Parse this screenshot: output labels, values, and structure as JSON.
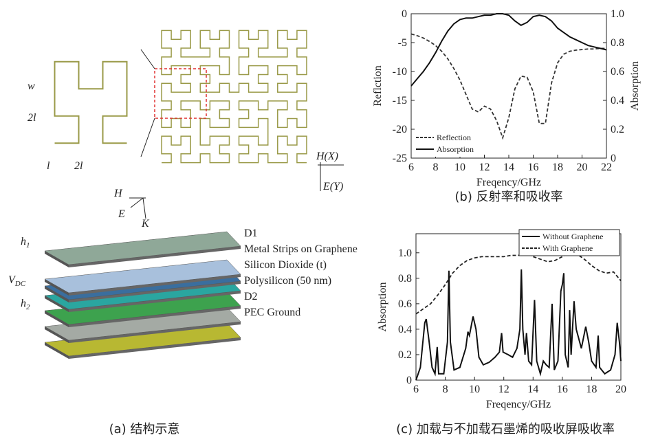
{
  "figure_a": {
    "caption": "(a) 结构示意",
    "w": "w",
    "two_l_v": "2l",
    "l": "l",
    "two_l_h": "2l",
    "hx": "H(X)",
    "ey": "E(Y)",
    "h_vec": "H",
    "e_vec": "E",
    "k_vec": "K",
    "layers": [
      "D1",
      "Metal Strips on Graphene",
      "Silicon Dioxide (t)",
      "Polysilicon (50 nm)",
      "D2",
      "PEC Ground"
    ],
    "h1": {
      "base": "h",
      "sub": "1"
    },
    "vdc": {
      "base": "V",
      "sub": "DC"
    },
    "h2": {
      "base": "h",
      "sub": "2"
    }
  },
  "chart_data": [
    {
      "type": "line",
      "caption": "(b) 反射率和吸收率",
      "xlabel": "Freqency/GHz",
      "ylabel": "Reflction",
      "y2label": "Absorption",
      "legend": "lower left",
      "x": [
        6,
        6.5,
        7,
        7.5,
        8,
        8.5,
        9,
        9.5,
        10,
        10.5,
        11,
        11.5,
        12,
        12.5,
        13,
        13.5,
        14,
        14.5,
        15,
        15.5,
        16,
        16.5,
        17,
        17.5,
        18,
        18.5,
        19,
        19.5,
        20,
        20.5,
        21,
        21.5,
        22
      ],
      "xlim": [
        6,
        22
      ],
      "xticks": [
        6,
        8,
        10,
        12,
        14,
        16,
        18,
        20,
        22
      ],
      "ylim": [
        -25,
        0
      ],
      "yticks": [
        0,
        -5,
        -10,
        -15,
        -20,
        -25
      ],
      "y2lim": [
        0,
        1
      ],
      "y2ticks": [
        0,
        0.2,
        0.4,
        0.6,
        {
          "value": 0.8,
          "label": "0.8"
        },
        {
          "value": 1,
          "label": "1.0"
        }
      ],
      "series": [
        {
          "name": "Reflection",
          "color": "#333333",
          "dashed": true,
          "values": [
            -3.5,
            -3.8,
            -4.2,
            -4.8,
            -5.5,
            -6.5,
            -7.8,
            -9.5,
            -11.5,
            -14,
            -16.5,
            -17,
            -16,
            -16.5,
            -18.5,
            -21.5,
            -18,
            -13,
            -10.8,
            -11,
            -13.5,
            -19,
            -19,
            -12,
            -8.5,
            -7,
            -6.5,
            -6.3,
            -6.2,
            -6.1,
            -6.1,
            -6,
            -6
          ]
        },
        {
          "name": "Absorption",
          "color": "#111111",
          "dashed": false,
          "axis": "y2",
          "values": [
            0.5,
            0.55,
            0.6,
            0.66,
            0.73,
            0.81,
            0.88,
            0.93,
            0.96,
            0.97,
            0.97,
            0.98,
            0.99,
            0.99,
            1.0,
            1.0,
            0.99,
            0.95,
            0.92,
            0.94,
            0.98,
            0.99,
            0.98,
            0.95,
            0.9,
            0.87,
            0.84,
            0.82,
            0.8,
            0.78,
            0.77,
            0.76,
            0.75
          ]
        }
      ]
    },
    {
      "type": "line",
      "caption": "(c) 加载与不加载石墨烯的吸收屏吸收率",
      "xlabel": "Freqency/GHz",
      "ylabel": "Absorption",
      "legend": "upper right",
      "xlim": [
        6,
        20
      ],
      "xticks": [
        6,
        8,
        10,
        12,
        14,
        16,
        18,
        20
      ],
      "ylim": [
        0,
        1.15
      ],
      "yticks": [
        0,
        0.2,
        0.4,
        0.6,
        0.8,
        {
          "value": 1,
          "label": "1.0"
        }
      ],
      "series": [
        {
          "name": "Without Graphene",
          "color": "#111111",
          "dashed": false,
          "x": [
            6,
            6.3,
            6.6,
            6.7,
            6.9,
            7.1,
            7.3,
            7.45,
            7.55,
            7.9,
            8.15,
            8.25,
            8.35,
            8.6,
            9.0,
            9.4,
            9.55,
            9.65,
            9.9,
            10.1,
            10.3,
            10.6,
            11.0,
            11.4,
            11.7,
            11.85,
            11.95,
            12.3,
            12.6,
            12.9,
            13.1,
            13.2,
            13.3,
            13.45,
            13.55,
            13.7,
            13.9,
            14.1,
            14.25,
            14.5,
            14.7,
            14.9,
            15.1,
            15.3,
            15.45,
            15.7,
            15.9,
            16.0,
            16.1,
            16.2,
            16.4,
            16.5,
            16.6,
            16.8,
            16.95,
            17.3,
            17.6,
            17.8,
            18.0,
            18.3,
            18.45,
            18.55,
            18.9,
            19.3,
            19.6,
            19.75,
            19.9,
            20.0
          ],
          "values": [
            0.0,
            0.1,
            0.45,
            0.48,
            0.3,
            0.1,
            0.05,
            0.26,
            0.05,
            0.05,
            0.3,
            0.86,
            0.3,
            0.08,
            0.1,
            0.25,
            0.38,
            0.35,
            0.5,
            0.4,
            0.18,
            0.12,
            0.14,
            0.18,
            0.22,
            0.37,
            0.22,
            0.2,
            0.18,
            0.25,
            0.4,
            0.87,
            0.4,
            0.2,
            0.37,
            0.15,
            0.12,
            0.63,
            0.15,
            0.05,
            0.15,
            0.12,
            0.1,
            0.6,
            0.08,
            0.15,
            0.7,
            0.75,
            0.84,
            0.2,
            0.1,
            0.55,
            0.2,
            0.62,
            0.4,
            0.25,
            0.42,
            0.3,
            0.15,
            0.1,
            0.35,
            0.1,
            0.05,
            0.08,
            0.2,
            0.45,
            0.3,
            0.15
          ]
        },
        {
          "name": "With Graphene",
          "color": "#222222",
          "dashed": true,
          "x": [
            6,
            6.5,
            7,
            7.5,
            8,
            8.5,
            9,
            9.5,
            10,
            10.5,
            11,
            11.5,
            12,
            12.5,
            13,
            13.5,
            14,
            14.5,
            15,
            15.5,
            16,
            16.5,
            17,
            17.5,
            18,
            18.5,
            19,
            19.5,
            20
          ],
          "values": [
            0.52,
            0.56,
            0.6,
            0.67,
            0.75,
            0.84,
            0.9,
            0.94,
            0.96,
            0.97,
            0.97,
            0.97,
            0.97,
            0.98,
            0.98,
            1.0,
            0.97,
            0.95,
            0.93,
            0.94,
            0.97,
            1.0,
            0.99,
            0.95,
            0.9,
            0.86,
            0.84,
            0.85,
            0.78
          ]
        }
      ]
    }
  ]
}
